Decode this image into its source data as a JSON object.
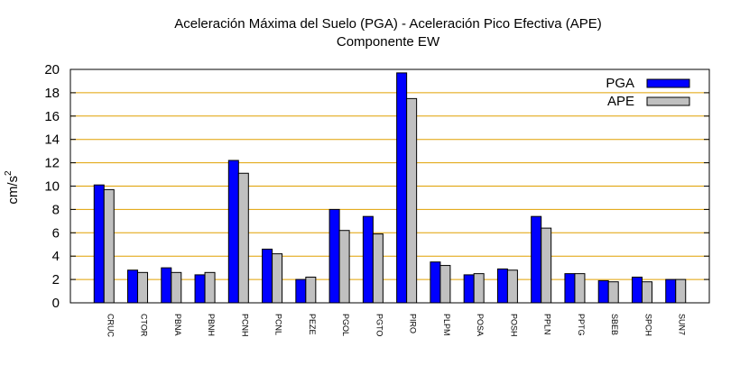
{
  "chart_data": {
    "type": "bar",
    "title": "Aceleración Máxima del Suelo (PGA) -  Aceleración Pico Efectiva (APE)",
    "subtitle": "Componente EW",
    "xlabel": "",
    "ylabel_base": "cm/s",
    "ylabel_exp": "2",
    "ylim": [
      0,
      20
    ],
    "yticks": [
      0,
      2,
      4,
      6,
      8,
      10,
      12,
      14,
      16,
      18,
      20
    ],
    "grid": true,
    "legend_position": "top-right",
    "categories": [
      "CRUC",
      "CTOR",
      "PBNA",
      "PBNH",
      "PCNH",
      "PCNL",
      "PEZE",
      "PGOL",
      "PGTO",
      "PIRO",
      "PLPM",
      "POSA",
      "POSH",
      "PPLN",
      "PPTG",
      "SBEB",
      "SPCH",
      "SUN7"
    ],
    "series": [
      {
        "name": "PGA",
        "color": "#0000ff",
        "values": [
          10.1,
          2.8,
          3.0,
          2.4,
          12.2,
          4.6,
          2.0,
          8.0,
          7.4,
          19.7,
          3.5,
          2.4,
          2.9,
          7.4,
          2.5,
          1.9,
          2.2,
          2.0
        ]
      },
      {
        "name": "APE",
        "color": "#c0c0c0",
        "values": [
          9.7,
          2.6,
          2.6,
          2.6,
          11.1,
          4.2,
          2.2,
          6.2,
          5.9,
          17.5,
          3.2,
          2.5,
          2.8,
          6.4,
          2.5,
          1.8,
          1.8,
          2.0
        ]
      }
    ]
  },
  "colors": {
    "grid": "#e0a000",
    "axis": "#000000"
  }
}
